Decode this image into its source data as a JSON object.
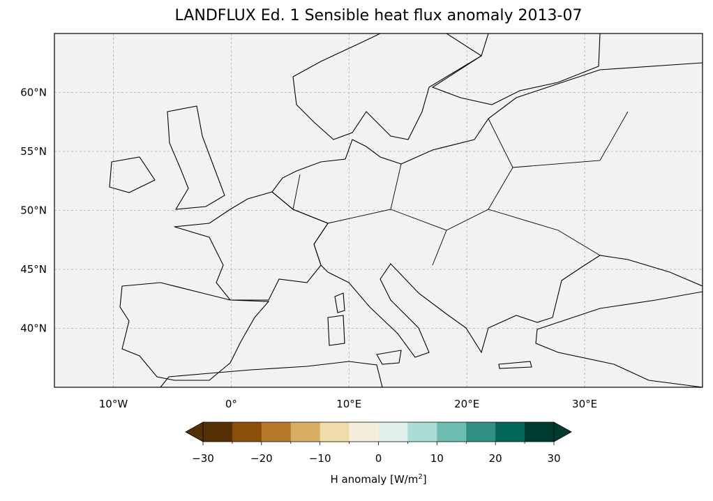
{
  "title": "LANDFLUX Ed. 1 Sensible heat flux anomaly 2013-07",
  "map": {
    "lon_range": [
      -15,
      40
    ],
    "lat_range": [
      35,
      65
    ],
    "lon_ticks": [
      {
        "value": -10,
        "label": "10°W"
      },
      {
        "value": 0,
        "label": "0°"
      },
      {
        "value": 10,
        "label": "10°E"
      },
      {
        "value": 20,
        "label": "20°E"
      },
      {
        "value": 30,
        "label": "30°E"
      }
    ],
    "lat_ticks": [
      {
        "value": 60,
        "label": "60°N"
      },
      {
        "value": 55,
        "label": "55°N"
      },
      {
        "value": 50,
        "label": "50°N"
      },
      {
        "value": 45,
        "label": "45°N"
      },
      {
        "value": 40,
        "label": "40°N"
      }
    ],
    "ocean_color": "#f2f2f2"
  },
  "colorbar": {
    "label": "H anomaly [W/m²]",
    "label_text": "H anomaly [W/m",
    "label_sup": "2",
    "label_end": "]",
    "min": -30,
    "max": 30,
    "step": 5,
    "extend": "both",
    "ticks": [
      "−30",
      "−20",
      "−10",
      "0",
      "10",
      "20",
      "30"
    ],
    "colors": [
      "#553005",
      "#8a500b",
      "#b6782a",
      "#d7ae63",
      "#f0dcaa",
      "#f5eedc",
      "#dfefec",
      "#acddd5",
      "#6dbeb0",
      "#2f8f85",
      "#016659",
      "#003b30"
    ]
  }
}
